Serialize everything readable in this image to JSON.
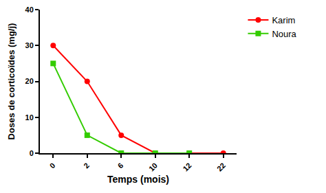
{
  "chart_data": {
    "type": "line",
    "x_label": "Temps (mois)",
    "y_label": "Doses de corticoïdes (mg/j)",
    "categories": [
      "0",
      "2",
      "6",
      "10",
      "12",
      "22"
    ],
    "series": [
      {
        "name": "Karim",
        "color": "#ff0000",
        "marker": "circle",
        "line_style": "solid",
        "values": [
          30,
          20,
          5,
          0,
          0,
          0
        ]
      },
      {
        "name": "Noura",
        "color": "#33cc00",
        "marker": "square",
        "line_style": "solid",
        "values": [
          25,
          5,
          0,
          0,
          0,
          null
        ]
      }
    ],
    "ylim": [
      0,
      40
    ],
    "yticks": [
      0,
      10,
      20,
      30,
      40
    ],
    "grid": false,
    "legend": "top right"
  }
}
